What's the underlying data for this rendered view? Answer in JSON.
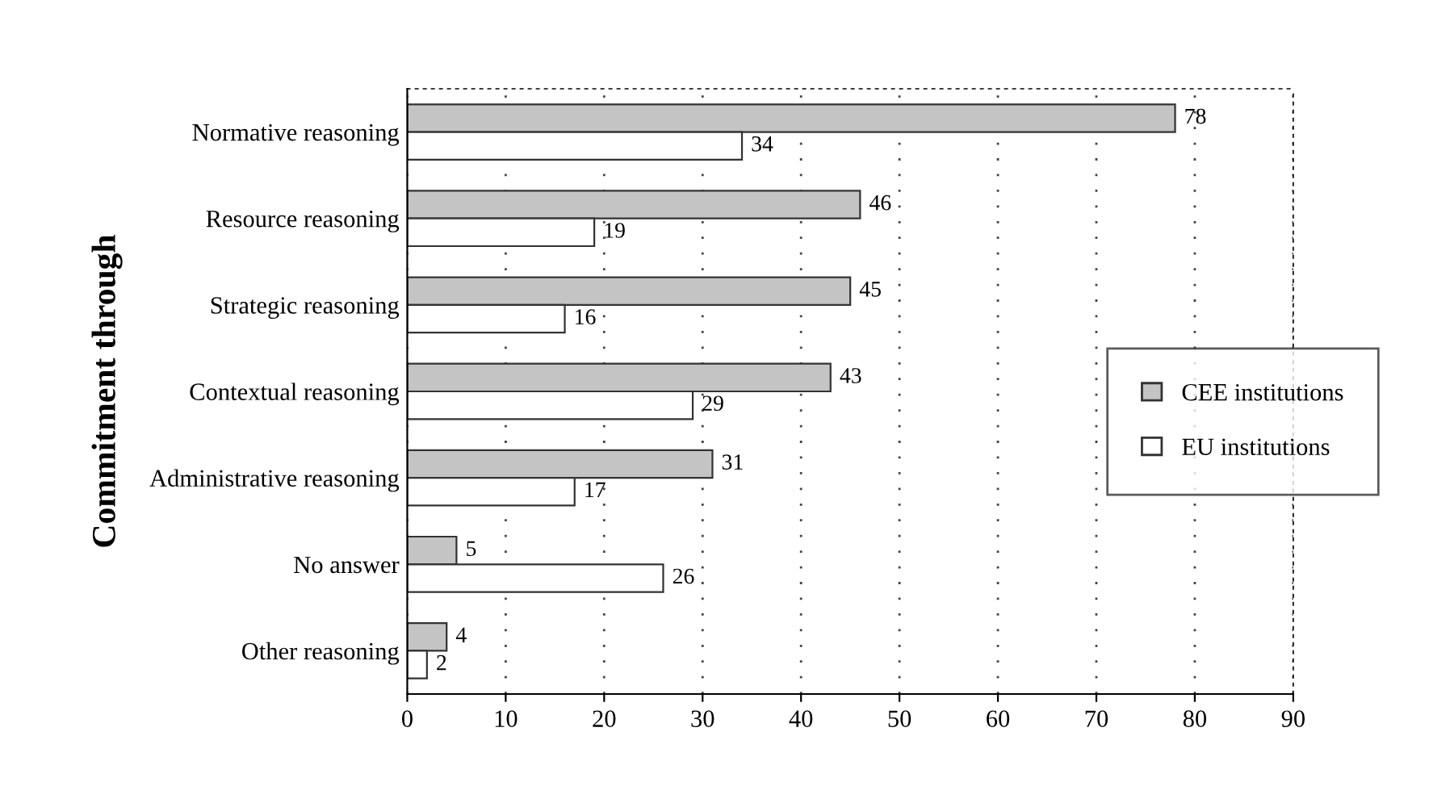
{
  "chart_data": {
    "type": "bar",
    "orientation": "horizontal",
    "ylabel": "Commitment through",
    "categories": [
      "Normative reasoning",
      "Resource reasoning",
      "Strategic reasoning",
      "Contextual reasoning",
      "Administrative reasoning",
      "No answer",
      "Other reasoning"
    ],
    "series": [
      {
        "name": "CEE institutions",
        "color": "#c4c4c4",
        "values": [
          78,
          46,
          45,
          43,
          31,
          5,
          4
        ]
      },
      {
        "name": "EU institutions",
        "color": "#ffffff",
        "values": [
          34,
          19,
          16,
          29,
          17,
          26,
          2
        ]
      }
    ],
    "xlim": [
      0,
      90
    ],
    "xticks": [
      0,
      10,
      20,
      30,
      40,
      50,
      60,
      70,
      80,
      90
    ],
    "grid": "x",
    "legend": "right",
    "data_labels": true
  }
}
